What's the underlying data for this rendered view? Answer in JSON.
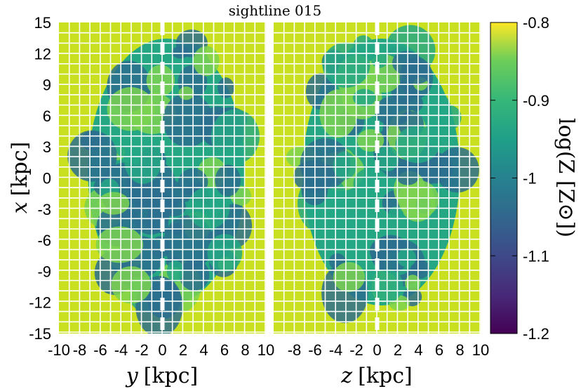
{
  "chart_data": {
    "type": "heatmap",
    "title": "sightline 015",
    "panels": [
      {
        "name": "left",
        "xlabel_var": "y",
        "xlabel_unit": "[kpc]",
        "xlim": [
          -10,
          10
        ],
        "xticks": [
          "-10",
          "-8",
          "-6",
          "-4",
          "-2",
          "0",
          "2",
          "4",
          "6",
          "8",
          "10"
        ],
        "xtick_values": [
          -10,
          -8,
          -6,
          -4,
          -2,
          0,
          2,
          4,
          6,
          8,
          10
        ]
      },
      {
        "name": "right",
        "xlabel_var": "z",
        "xlabel_unit": "[kpc]",
        "xlim": [
          -10,
          10
        ],
        "xticks": [
          "-8",
          "-6",
          "-4",
          "-2",
          "0",
          "2",
          "4",
          "6",
          "8",
          "10"
        ],
        "xtick_values": [
          -8,
          -6,
          -4,
          -2,
          0,
          2,
          4,
          6,
          8,
          10
        ]
      }
    ],
    "ylabel_var": "x",
    "ylabel_unit": "[kpc]",
    "ylim": [
      -15,
      15
    ],
    "yticks": [
      "15",
      "12",
      "9",
      "6",
      "3",
      "0",
      "-3",
      "-6",
      "-9",
      "-12",
      "-15"
    ],
    "ytick_values": [
      15,
      12,
      9,
      6,
      3,
      0,
      -3,
      -6,
      -9,
      -12,
      -15
    ],
    "colorbar": {
      "label": "log(Z [Z⊙])",
      "range": [
        -1.2,
        -0.8
      ],
      "ticks": [
        "-0.8",
        "-0.9",
        "-1",
        "-1.1",
        "-1.2"
      ],
      "tick_values": [
        -0.8,
        -0.9,
        -1.0,
        -1.1,
        -1.2
      ],
      "colormap": "viridis"
    },
    "grid": true,
    "grid_color": "#ffffff",
    "sightline_marker": "white dashed vertical line at 0 kpc",
    "background_value": -0.83,
    "colors": {
      "background": "#c8e020",
      "enriched_low": "#2c6e8e",
      "mid": "#25a784",
      "high": "#7cd250"
    }
  }
}
